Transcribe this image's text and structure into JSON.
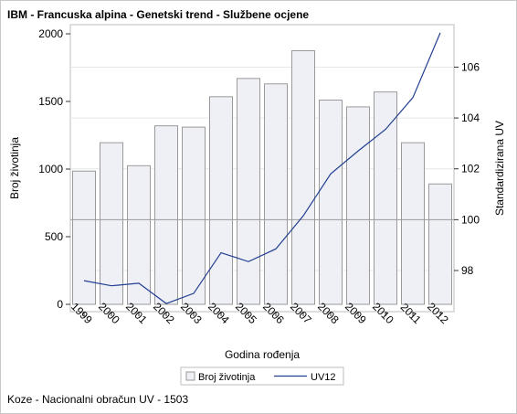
{
  "title": "IBM - Francuska alpina - Genetski trend - Službene ocjene",
  "footnote": "Koze - Nacionalni obračun UV - 1503",
  "colors": {
    "bar_fill": "#eef0f6",
    "bar_stroke": "#9a9a9a",
    "line": "#223e91",
    "reference_line": "#9a9a9a",
    "grid": "#e6e6e6"
  },
  "chart_data": {
    "type": "bar+line",
    "categories": [
      "1999",
      "2000",
      "2001",
      "2002",
      "2003",
      "2004",
      "2005",
      "2006",
      "2007",
      "2008",
      "2009",
      "2010",
      "2011",
      "2012"
    ],
    "series": [
      {
        "name": "Broj životinja",
        "type": "bar",
        "axis": "left",
        "values": [
          985,
          1195,
          1025,
          1320,
          1310,
          1535,
          1670,
          1630,
          1875,
          1510,
          1460,
          1570,
          1195,
          890
        ]
      },
      {
        "name": "UV12",
        "type": "line",
        "axis": "right",
        "values": [
          97.6,
          97.4,
          97.5,
          96.7,
          97.1,
          98.7,
          98.35,
          98.85,
          100.15,
          101.8,
          102.7,
          103.55,
          104.8,
          107.35
        ]
      }
    ],
    "xlabel": "Godina rođenja",
    "ylabel": "Broj životinja",
    "y2label": "Standardizirana UV",
    "yticks": [
      0,
      500,
      1000,
      1500,
      2000
    ],
    "y2ticks": [
      98,
      100,
      102,
      104,
      106
    ],
    "ylim": [
      0,
      2000
    ],
    "y2lim": [
      96.67,
      107.31
    ],
    "reference_line_y2": 100,
    "legend": [
      "Broj životinja",
      "UV12"
    ],
    "legend_position": "bottom"
  }
}
